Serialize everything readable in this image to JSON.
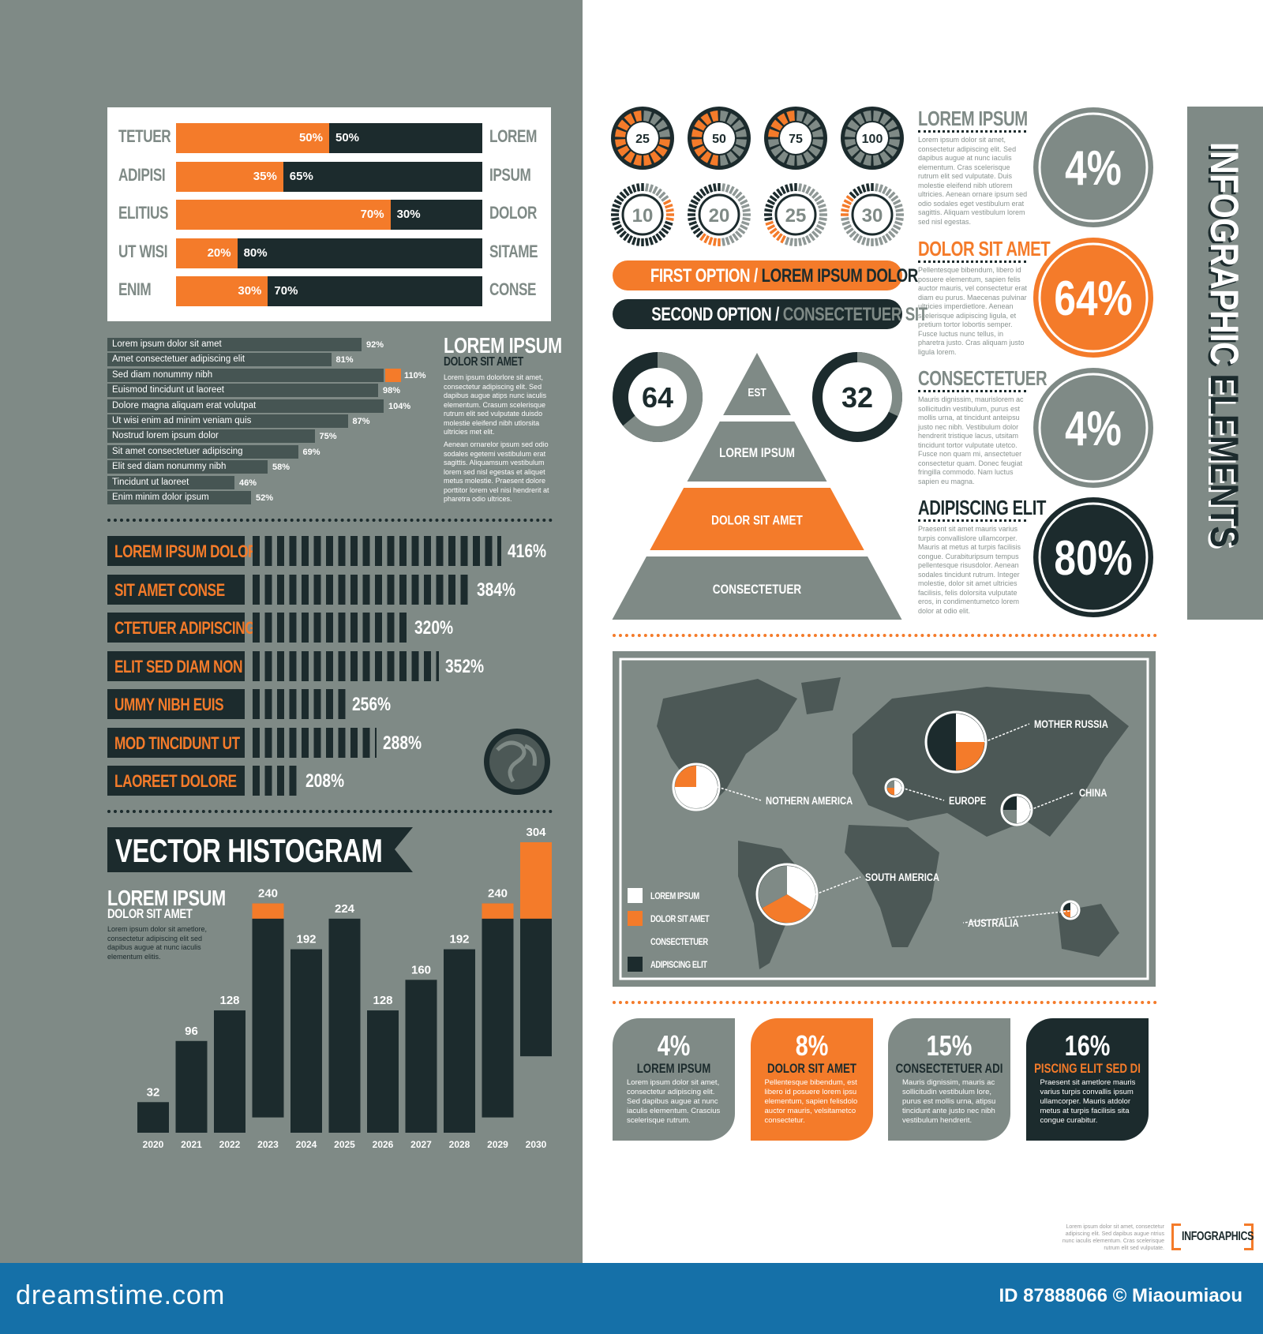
{
  "colors": {
    "gray": "#7f8a86",
    "dark": "#1c2b2d",
    "orange": "#f47b2a",
    "white": "#ffffff",
    "map_land": "#4c5856",
    "footer": "#1570a8"
  },
  "split_bars": {
    "rows": [
      {
        "left": "TETUER",
        "a": 50,
        "b": 50,
        "right": "LOREM"
      },
      {
        "left": "ADIPISI",
        "a": 35,
        "b": 65,
        "right": "IPSUM"
      },
      {
        "left": "ELITIUS",
        "a": 70,
        "b": 30,
        "right": "DOLOR"
      },
      {
        "left": "UT WISI",
        "a": 20,
        "b": 80,
        "right": "SITAME"
      },
      {
        "left": "ENIM",
        "a": 30,
        "b": 70,
        "right": "CONSE"
      }
    ]
  },
  "list_bars": {
    "rows": [
      {
        "label": "Lorem ipsum dolor sit amet",
        "value": 92
      },
      {
        "label": "Amet consectetuer adipiscing elit",
        "value": 81
      },
      {
        "label": "Sed diam nonummy nibh",
        "value": 110,
        "highlight": true
      },
      {
        "label": "Euismod tincidunt ut laoreet",
        "value": 98
      },
      {
        "label": "Dolore magna aliquam erat volutpat",
        "value": 104
      },
      {
        "label": "Ut wisi enim ad minim veniam quis",
        "value": 87
      },
      {
        "label": "Nostrud lorem ipsum dolor",
        "value": 75
      },
      {
        "label": "Sit amet consectetuer adipiscing",
        "value": 69
      },
      {
        "label": "Elit sed diam nonummy nibh",
        "value": 58
      },
      {
        "label": "Tincidunt ut laoreet",
        "value": 46
      },
      {
        "label": "Enim minim dolor ipsum",
        "value": 52
      }
    ],
    "side": {
      "title": "LOREM IPSUM",
      "subtitle": "DOLOR SIT AMET",
      "p1": "Lorem ipsum dolorlore sit amet, consectetur adipiscing elit. Sed dapibus augue atips nunc iaculis elementum. Crasum scelerisque rutrum elit sed vulputate duisdo molestie eleifend nibh utlorsita ultricies met elit.",
      "p2": "Aenean ornarelor ipsum sed odio sodales egetemi vestibulum erat sagittis. Aliquamsum vestibulum lorem sed nisl egestas et aliquet metus molestie. Praesent dolore porttitor lorem vel nisi hendrerit at pharetra odio ultrices."
    }
  },
  "barcode": {
    "rows": [
      {
        "label": "LOREM IPSUM DOLOR",
        "value": 416
      },
      {
        "label": "SIT AMET CONSE",
        "value": 384
      },
      {
        "label": "CTETUER ADIPISCING",
        "value": 320
      },
      {
        "label": "ELIT SED DIAM NON",
        "value": 352
      },
      {
        "label": "UMMY NIBH EUIS",
        "value": 256
      },
      {
        "label": "MOD TINCIDUNT UT",
        "value": 288
      },
      {
        "label": "LAOREET DOLORE",
        "value": 208
      }
    ]
  },
  "histogram_text": {
    "banner": "VECTOR HISTOGRAM",
    "title": "LOREM IPSUM",
    "subtitle": "DOLOR SIT AMET",
    "body": "Lorem ipsum dolor sit ametlore, consectetur adipiscing elit sed dapibus augue at nunc iaculis elementum elitis."
  },
  "chart_data": {
    "type": "bar",
    "title": "VECTOR HISTOGRAM",
    "categories": [
      "2020",
      "2021",
      "2022",
      "2023",
      "2024",
      "2025",
      "2026",
      "2027",
      "2028",
      "2029",
      "2030"
    ],
    "values": [
      32,
      96,
      128,
      240,
      192,
      224,
      128,
      160,
      192,
      240,
      304
    ],
    "highlight_top": [
      0,
      0,
      0,
      16,
      0,
      0,
      0,
      0,
      0,
      16,
      80
    ],
    "ylim": [
      0,
      304
    ],
    "grid": false
  },
  "gauges": {
    "solid": [
      25,
      50,
      75,
      100
    ],
    "ticks": [
      10,
      20,
      25,
      30
    ]
  },
  "options": [
    {
      "a": "FIRST OPTION / ",
      "b": "LOREM IPSUM DOLOR"
    },
    {
      "a": "SECOND OPTION / ",
      "b": "CONSECTETUER SIT"
    }
  ],
  "donuts": [
    64,
    32
  ],
  "pyramid": [
    "EST",
    "LOREM IPSUM",
    "DOLOR SIT AMET",
    "CONSECTETUER"
  ],
  "text_column": [
    {
      "title": "LOREM IPSUM",
      "body": "Lorem ipsum dolor sit amet, consectetur adipiscing elit. Sed dapibus augue at nunc iaculis elementum. Cras scelerisque rutrum elit sed vulputate. Duis molestie eleifend nibh utlorem ultricies. Aenean ornare ipsum sed odio sodales eget vestibulum erat sagittis. Aliquam vestibulum lorem sed nisl egestas.",
      "color": "#7f8a86"
    },
    {
      "title": "DOLOR SIT AMET",
      "body": "Pellentesque bibendum, libero id posuere elementum, sapien felis auctor mauris, vel consectetur erat diam eu purus. Maecenas pulvinar ultricies imperdietlore. Aenean scelerisque adipiscing ligula, et pretium tortor lobortis semper. Fusce luctus nunc tellus, in pharetra justo. Cras aliquam justo ligula lorem.",
      "color": "#f47b2a"
    },
    {
      "title": "CONSECTETUER",
      "body": "Mauris dignissim, maurislorem ac sollicitudin vestibulum, purus est mollis urna, at tincidunt anteipsu justo nec nibh. Vestibulum dolor hendrerit tristique lacus, utsitam tincidunt tortor vulputate utetco. Fusce non quam mi, ansectetuer consectetur quam. Donec feugiat fringilla commodo. Nam luctus sapien eu magna.",
      "color": "#7f8a86"
    },
    {
      "title": "ADIPISCING ELIT",
      "body": "Praesent sit amet mauris varius turpis convallislore ullamcorper. Mauris at metus at turpis facilisis congue. Curabituripsum tempus pellentesque risusdolor. Aenean sodales tincidunt rutrum. Integer molestie, dolor sit amet ultricies facilisis, felis dolorsita vulputate eros, in condimentumetco lorem dolor at odio elit.",
      "color": "#1c2b2d"
    }
  ],
  "big_circles": [
    {
      "label": "4%",
      "color": "#7f8a86"
    },
    {
      "label": "64%",
      "color": "#f47b2a"
    },
    {
      "label": "4%",
      "color": "#7f8a86"
    },
    {
      "label": "80%",
      "color": "#1c2b2d"
    }
  ],
  "side_banner": {
    "a": "INFOGRAPHIC ",
    "b": "ELEMENTS"
  },
  "map": {
    "legend": [
      "LOREM IPSUM",
      "DOLOR SIT AMET",
      "CONSECTETUER",
      "ADIPISCING ELIT"
    ],
    "regions": [
      {
        "label": "NOTHERN AMERICA",
        "slices": [
          75,
          25,
          0,
          0
        ]
      },
      {
        "label": "MOTHER RUSSIA",
        "slices": [
          25,
          25,
          0,
          50
        ]
      },
      {
        "label": "EUROPE",
        "slices": [
          50,
          25,
          25,
          0
        ]
      },
      {
        "label": "CHINA",
        "slices": [
          50,
          0,
          25,
          25
        ]
      },
      {
        "label": "SOUTH AMERICA",
        "slices": [
          34,
          33,
          33,
          0
        ]
      },
      {
        "label": "AUSTRALIA",
        "slices": [
          50,
          25,
          0,
          25
        ]
      }
    ]
  },
  "cards": [
    {
      "pct": "4%",
      "title": "LOREM IPSUM",
      "body": "Lorem ipsum dolor sit amet, consectetur adipiscing elit. Sed dapibus augue at nunc iaculis elementum. Crascius scelerisque rutrum."
    },
    {
      "pct": "8%",
      "title": "DOLOR SIT AMET",
      "body": "Pellentesque bibendum, est libero id posuere lorem ipsu elementum, sapien felisdolo auctor mauris, velsitametco consectetur."
    },
    {
      "pct": "15%",
      "title": "CONSECTETUER ADI",
      "body": "Mauris dignissim, mauris ac sollicitudin vestibulum lore, purus est mollis urna, atipsu tincidunt ante justo nec nibh vestibulum hendrerit."
    },
    {
      "pct": "16%",
      "title": "PISCING ELIT SED DI",
      "body": "Praesent sit ametlore mauris varius turpis convallis ipsum ullamcorper. Mauris atdolor metus at turpis facilisis sita congue curabitur."
    }
  ],
  "footnote": {
    "text": "Lorem ipsum dolor sit amet, consectetur adipiscing elit. Sed dapibus augue ntrius nunc iaculis elementum. Cras scelerisque rutrum elit sed vulputate.",
    "tag": "INFOGRAPHICS"
  },
  "footer": {
    "site": "dreamstime.com",
    "id": "ID 87888066 © Miaoumiaou"
  }
}
